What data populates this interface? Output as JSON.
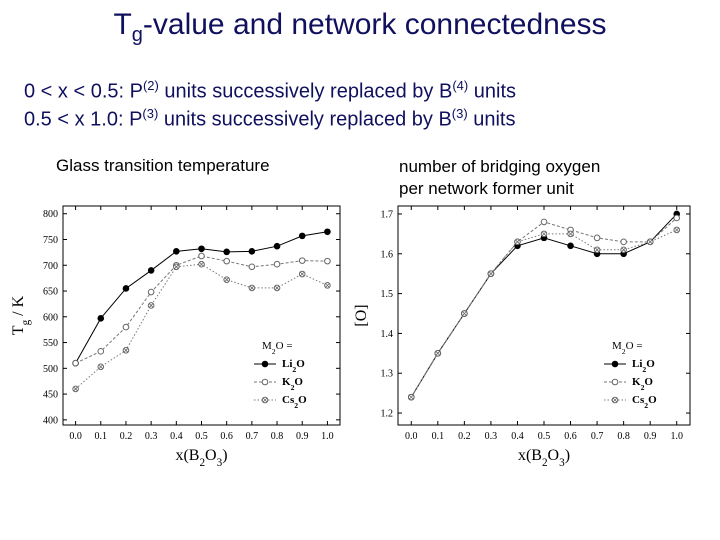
{
  "slide": {
    "title_main": "T",
    "title_sub": "g",
    "title_rest": "-value and network connectedness",
    "line1": {
      "a": "0 < x < 0.5: P",
      "sup1": "(2)",
      "b": " units successively replaced by B",
      "sup2": "(4)",
      "c": " units"
    },
    "line2": {
      "a": "0.5 < x 1.0: P",
      "sup1": "(3)",
      "b": " units successively replaced by B",
      "sup2": "(3)",
      "c": " units"
    },
    "caption_left": "Glass transition temperature",
    "caption_right_1": "number of bridging oxygen",
    "caption_right_2": "per network former unit"
  },
  "chart_data": [
    {
      "type": "line",
      "ylabel": "Tg / K",
      "xlabel": "x(B2O3)",
      "x": [
        0.0,
        0.1,
        0.2,
        0.3,
        0.4,
        0.5,
        0.6,
        0.7,
        0.8,
        0.9,
        1.0
      ],
      "xticks": [
        "0.0",
        "0.1",
        "0.2",
        "0.3",
        "0.4",
        "0.5",
        "0.6",
        "0.7",
        "0.8",
        "0.9",
        "1.0"
      ],
      "yticks": [
        "400",
        "450",
        "500",
        "550",
        "600",
        "650",
        "700",
        "750",
        "800"
      ],
      "ylim": [
        390,
        815
      ],
      "legend_title": "M2O =",
      "series": [
        {
          "name": "Li2O",
          "values": [
            510,
            597,
            655,
            690,
            727,
            732,
            726,
            727,
            737,
            757,
            765
          ]
        },
        {
          "name": "K2O",
          "values": [
            510,
            533,
            580,
            648,
            700,
            718,
            708,
            697,
            702,
            709,
            708
          ]
        },
        {
          "name": "Cs2O",
          "values": [
            460,
            503,
            535,
            622,
            697,
            702,
            672,
            656,
            656,
            683,
            661
          ]
        }
      ]
    },
    {
      "type": "line",
      "ylabel": "[O]",
      "xlabel": "x(B2O3)",
      "x": [
        0.0,
        0.1,
        0.2,
        0.3,
        0.4,
        0.5,
        0.6,
        0.7,
        0.8,
        0.9,
        1.0
      ],
      "xticks": [
        "0.0",
        "0.1",
        "0.2",
        "0.3",
        "0.4",
        "0.5",
        "0.6",
        "0.7",
        "0.8",
        "0.9",
        "1.0"
      ],
      "yticks": [
        "1.2",
        "1.3",
        "1.4",
        "1.5",
        "1.6",
        "1.7"
      ],
      "ylim": [
        1.17,
        1.72
      ],
      "legend_title": "M2O =",
      "series": [
        {
          "name": "Li2O",
          "values": [
            1.24,
            1.35,
            1.45,
            1.55,
            1.62,
            1.64,
            1.62,
            1.6,
            1.6,
            1.63,
            1.7
          ]
        },
        {
          "name": "K2O",
          "values": [
            1.24,
            1.35,
            1.45,
            1.55,
            1.63,
            1.68,
            1.66,
            1.64,
            1.63,
            1.63,
            1.69
          ]
        },
        {
          "name": "Cs2O",
          "values": [
            1.24,
            1.35,
            1.45,
            1.55,
            1.63,
            1.65,
            1.65,
            1.61,
            1.61,
            1.63,
            1.66
          ]
        }
      ]
    }
  ]
}
